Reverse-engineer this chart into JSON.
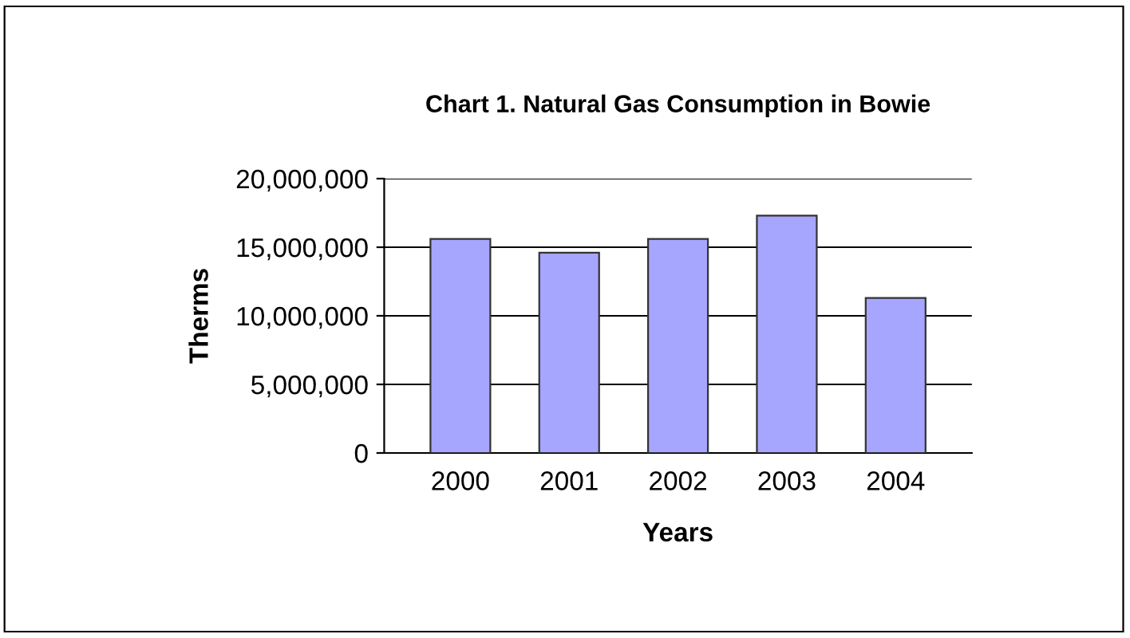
{
  "chart_data": {
    "type": "bar",
    "title": "Chart 1. Natural Gas Consumption in Bowie",
    "xlabel": "Years",
    "ylabel": "Therms",
    "categories": [
      "2000",
      "2001",
      "2002",
      "2003",
      "2004"
    ],
    "values": [
      15600000,
      14600000,
      15600000,
      17300000,
      11300000
    ],
    "color": "#a6a6ff",
    "ylim": [
      0,
      20000000
    ],
    "yticks": [
      {
        "value": 0,
        "label": "0"
      },
      {
        "value": 5000000,
        "label": "5,000,000"
      },
      {
        "value": 10000000,
        "label": "10,000,000"
      },
      {
        "value": 15000000,
        "label": "15,000,000"
      },
      {
        "value": 20000000,
        "label": "20,000,000"
      }
    ],
    "grid": "y",
    "legend": false
  }
}
